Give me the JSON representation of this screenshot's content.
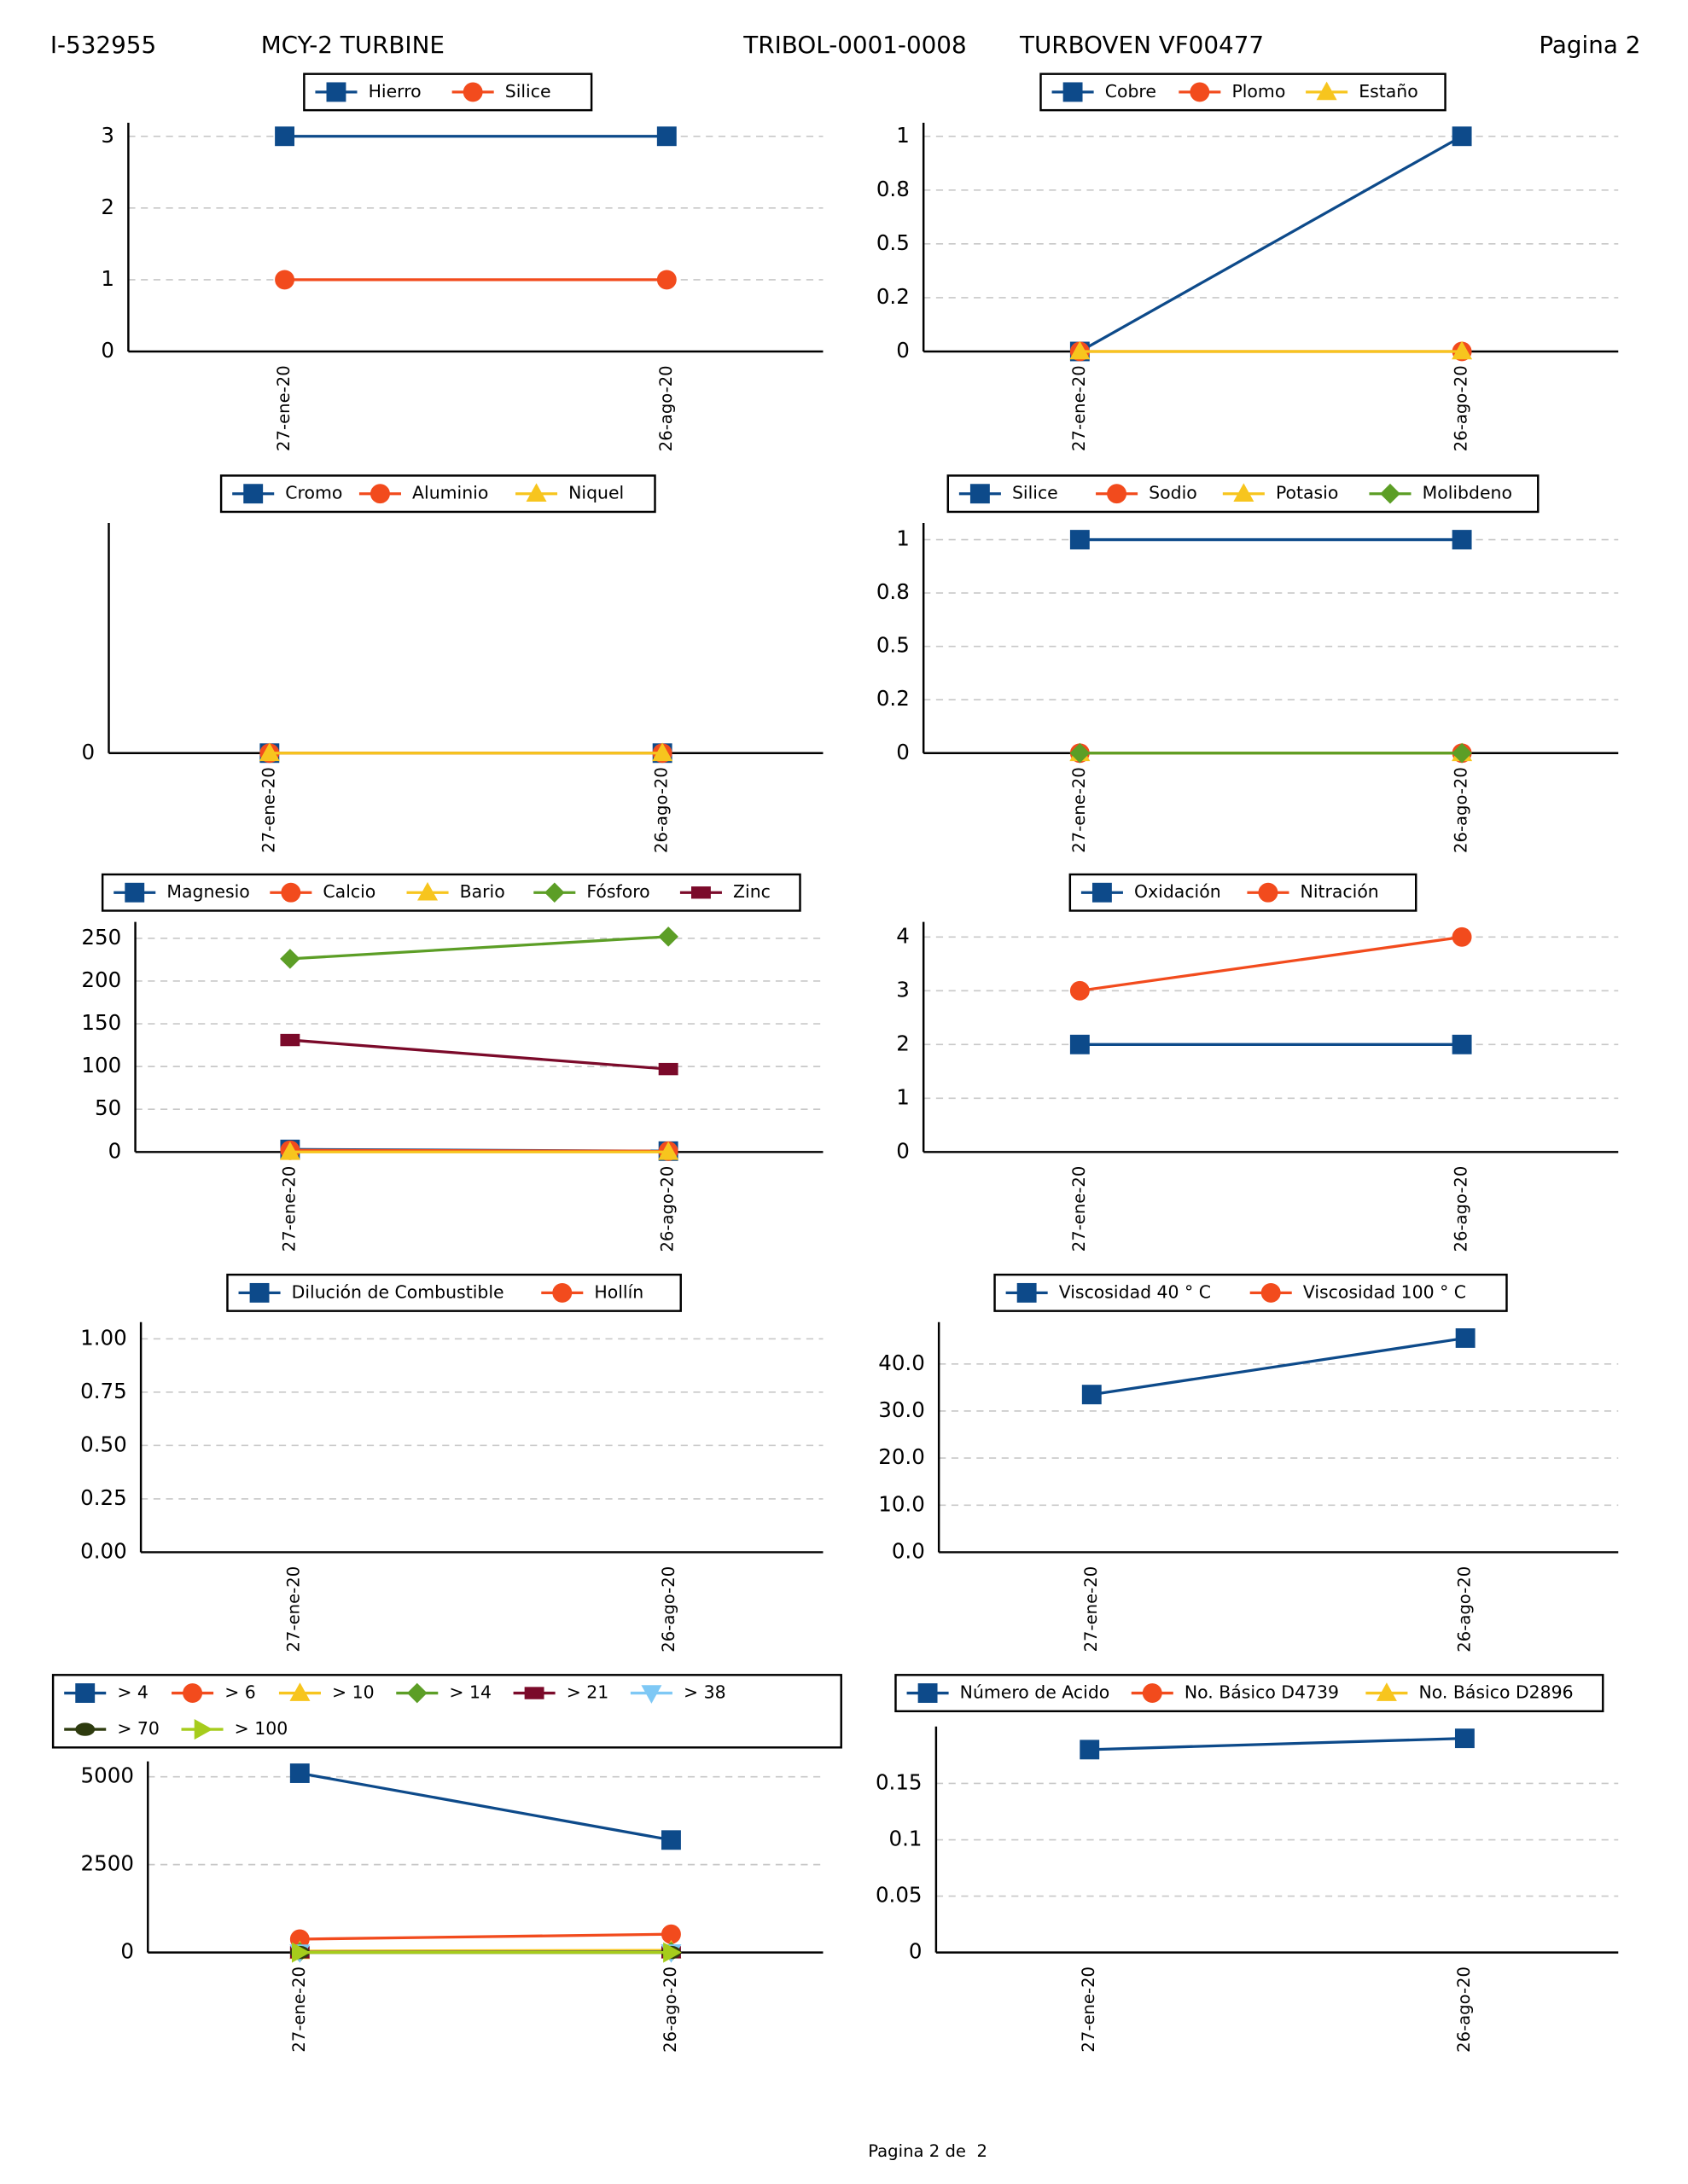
{
  "header": {
    "id": "I-532955",
    "machine": "MCY-2 TURBINE",
    "code": "TRIBOL-0001-0008",
    "product": "TURBOVEN VF00477",
    "page": "Pagina 2"
  },
  "footer": "Pagina 2 de  2",
  "chart_data": [
    {
      "type": "line",
      "categories": [
        "27-ene-20",
        "26-ago-20"
      ],
      "grid": true,
      "ylim": [
        0,
        3.15
      ],
      "yticks": [
        0,
        1,
        2,
        3
      ],
      "series": [
        {
          "name": "Hierro",
          "color": "#0d4a8a",
          "marker": "square",
          "values": [
            3,
            3
          ]
        },
        {
          "name": "Silice",
          "color": "#f24b1d",
          "marker": "circle",
          "values": [
            1,
            1
          ]
        }
      ]
    },
    {
      "type": "line",
      "categories": [
        "27-ene-20",
        "26-ago-20"
      ],
      "grid": true,
      "ylim": [
        0,
        1.05
      ],
      "yticks": [
        0,
        {
          "value": 0.25,
          "label": "0.2"
        },
        0.5,
        {
          "value": 0.75,
          "label": "0.8"
        },
        1
      ],
      "series": [
        {
          "name": "Cobre",
          "color": "#0d4a8a",
          "marker": "square",
          "values": [
            0,
            1
          ]
        },
        {
          "name": "Plomo",
          "color": "#f24b1d",
          "marker": "circle",
          "values": [
            0,
            0
          ]
        },
        {
          "name": "Estaño",
          "color": "#f7c51e",
          "marker": "triangle",
          "values": [
            0,
            0
          ]
        }
      ]
    },
    {
      "type": "line",
      "categories": [
        "27-ene-20",
        "26-ago-20"
      ],
      "grid": true,
      "ylim": [
        0,
        1
      ],
      "yticks": [
        0
      ],
      "series": [
        {
          "name": "Cromo",
          "color": "#0d4a8a",
          "marker": "square",
          "values": [
            0,
            0
          ]
        },
        {
          "name": "Aluminio",
          "color": "#f24b1d",
          "marker": "circle",
          "values": [
            0,
            0
          ]
        },
        {
          "name": "Niquel",
          "color": "#f7c51e",
          "marker": "triangle",
          "values": [
            0,
            0
          ]
        }
      ]
    },
    {
      "type": "line",
      "categories": [
        "27-ene-20",
        "26-ago-20"
      ],
      "grid": true,
      "ylim": [
        0,
        1.065
      ],
      "yticks": [
        0,
        {
          "value": 0.25,
          "label": "0.2"
        },
        0.5,
        {
          "value": 0.75,
          "label": "0.8"
        },
        1
      ],
      "series": [
        {
          "name": "Silice",
          "color": "#0d4a8a",
          "marker": "square",
          "values": [
            1,
            1
          ]
        },
        {
          "name": "Sodio",
          "color": "#f24b1d",
          "marker": "circle",
          "values": [
            0,
            0
          ]
        },
        {
          "name": "Potasio",
          "color": "#f7c51e",
          "marker": "triangle",
          "values": [
            0,
            0
          ]
        },
        {
          "name": "Molibdeno",
          "color": "#5c9e26",
          "marker": "diamond",
          "values": [
            0,
            0
          ]
        }
      ]
    },
    {
      "type": "line",
      "categories": [
        "27-ene-20",
        "26-ago-20"
      ],
      "grid": true,
      "ylim": [
        0,
        266
      ],
      "yticks": [
        0,
        50,
        100,
        150,
        200,
        250
      ],
      "series": [
        {
          "name": "Magnesio",
          "color": "#0d4a8a",
          "marker": "square",
          "values": [
            3,
            1
          ]
        },
        {
          "name": "Calcio",
          "color": "#f24b1d",
          "marker": "circle",
          "values": [
            2,
            1
          ]
        },
        {
          "name": "Bario",
          "color": "#f7c51e",
          "marker": "triangle",
          "values": [
            0,
            0
          ]
        },
        {
          "name": "Fósforo",
          "color": "#5c9e26",
          "marker": "diamond",
          "values": [
            226,
            252
          ]
        },
        {
          "name": "Zinc",
          "color": "#7b0a2a",
          "marker": "rect",
          "values": [
            131,
            97
          ]
        }
      ]
    },
    {
      "type": "line",
      "categories": [
        "27-ene-20",
        "26-ago-20"
      ],
      "grid": true,
      "ylim": [
        0,
        4.23
      ],
      "yticks": [
        0,
        1,
        2,
        3,
        4
      ],
      "series": [
        {
          "name": "Oxidación",
          "color": "#0d4a8a",
          "marker": "square",
          "values": [
            2,
            2
          ]
        },
        {
          "name": "Nitración",
          "color": "#f24b1d",
          "marker": "circle",
          "values": [
            3,
            4
          ]
        }
      ]
    },
    {
      "type": "line",
      "categories": [
        "27-ene-20",
        "26-ago-20"
      ],
      "grid": true,
      "ylim": [
        0,
        1.065
      ],
      "yticks": [
        {
          "value": 0,
          "label": "0.00"
        },
        {
          "value": 0.25,
          "label": "0.25"
        },
        {
          "value": 0.5,
          "label": "0.50"
        },
        {
          "value": 0.75,
          "label": "0.75"
        },
        {
          "value": 1,
          "label": "1.00"
        }
      ],
      "series": [
        {
          "name": "Dilución de Combustible",
          "color": "#0d4a8a",
          "marker": "square",
          "values": [
            null,
            null
          ]
        },
        {
          "name": "Hollín",
          "color": "#f24b1d",
          "marker": "circle",
          "values": [
            null,
            null
          ]
        }
      ]
    },
    {
      "type": "line",
      "categories": [
        "27-ene-20",
        "26-ago-20"
      ],
      "grid": true,
      "ylim": [
        0,
        48.3
      ],
      "yticks": [
        {
          "value": 0,
          "label": "0.0"
        },
        {
          "value": 10,
          "label": "10.0"
        },
        {
          "value": 20,
          "label": "20.0"
        },
        {
          "value": 30,
          "label": "30.0"
        },
        {
          "value": 40,
          "label": "40.0"
        }
      ],
      "series": [
        {
          "name": "Viscosidad 40 ° C",
          "color": "#0d4a8a",
          "marker": "square",
          "values": [
            33.5,
            45.5
          ]
        },
        {
          "name": "Viscosidad 100 ° C",
          "color": "#f24b1d",
          "marker": "circle",
          "values": [
            null,
            null
          ]
        }
      ]
    },
    {
      "type": "line",
      "categories": [
        "27-ene-20",
        "26-ago-20"
      ],
      "grid": true,
      "ylim": [
        0,
        5357
      ],
      "yticks": [
        0,
        2500,
        5000
      ],
      "series": [
        {
          "name": "> 4",
          "color": "#0d4a8a",
          "marker": "square",
          "values": [
            5100,
            3200
          ]
        },
        {
          "name": "> 6",
          "color": "#f24b1d",
          "marker": "circle",
          "values": [
            380,
            520
          ]
        },
        {
          "name": "> 10",
          "color": "#f7c51e",
          "marker": "triangle",
          "values": [
            40,
            60
          ]
        },
        {
          "name": "> 14",
          "color": "#5c9e26",
          "marker": "diamond",
          "values": [
            10,
            20
          ]
        },
        {
          "name": "> 21",
          "color": "#7b0a2a",
          "marker": "rect",
          "values": [
            5,
            5
          ]
        },
        {
          "name": "> 38",
          "color": "#7ec8f5",
          "marker": "triangle-down",
          "values": [
            2,
            3
          ]
        },
        {
          "name": "> 70",
          "color": "#2e3b0f",
          "marker": "ellipse",
          "values": [
            0,
            1
          ]
        },
        {
          "name": "> 100",
          "color": "#a6cc1c",
          "marker": "triangle-right",
          "values": [
            0,
            0
          ]
        }
      ]
    },
    {
      "type": "line",
      "categories": [
        "27-ene-20",
        "26-ago-20"
      ],
      "grid": true,
      "ylim": [
        0,
        0.198
      ],
      "yticks": [
        0,
        0.05,
        0.1,
        0.15
      ],
      "series": [
        {
          "name": "Número de Acido",
          "color": "#0d4a8a",
          "marker": "square",
          "values": [
            0.18,
            0.19
          ]
        },
        {
          "name": "No. Básico D4739",
          "color": "#f24b1d",
          "marker": "circle",
          "values": [
            null,
            null
          ]
        },
        {
          "name": "No. Básico D2896",
          "color": "#f7c51e",
          "marker": "triangle",
          "values": [
            null,
            null
          ]
        }
      ]
    }
  ]
}
